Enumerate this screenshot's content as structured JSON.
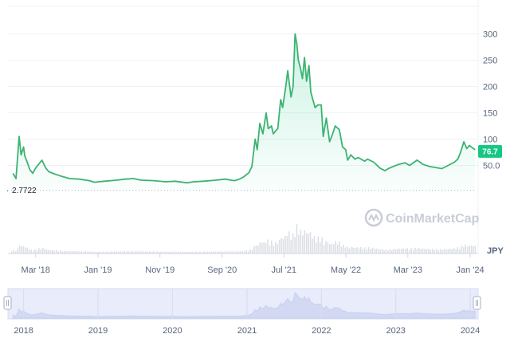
{
  "watermark": {
    "text": "CoinMarketCap"
  },
  "currency_label": "JPY",
  "base_price_label": "2.7722",
  "current_price_label": "76.7",
  "colors": {
    "line": "#3cb371",
    "fill_top": "#16c784",
    "badge": "#16c784",
    "volume": "#dcdfe4",
    "grid": "#eff2f5",
    "navigator_fill": "#e8ecfb",
    "navigator_line": "#c7d0ef"
  },
  "chart_data": {
    "type": "area",
    "title": "",
    "xlabel": "",
    "ylabel": "",
    "y_ticks": [
      "50.0",
      "100",
      "150",
      "200",
      "250",
      "300"
    ],
    "ylim": [
      0,
      330
    ],
    "x_ticks": [
      "Mar '18",
      "Jan '19",
      "Nov '19",
      "Sep '20",
      "Jul '21",
      "May '22",
      "Mar '23",
      "Jan '24"
    ],
    "navigator_ticks": [
      "2018",
      "2019",
      "2020",
      "2021",
      "2022",
      "2023",
      "2024"
    ],
    "grid": true,
    "legend": "none",
    "series": [
      {
        "x": [
          "2017-11-10",
          "2017-11-25",
          "2017-12-10",
          "2017-12-20",
          "2018-01-01",
          "2018-01-07",
          "2018-01-15",
          "2018-02-01",
          "2018-02-15",
          "2018-03-01",
          "2018-04-01",
          "2018-04-20",
          "2018-05-05",
          "2018-06-01",
          "2018-07-01",
          "2018-08-15",
          "2018-10-01",
          "2018-11-20",
          "2018-12-15",
          "2019-02-01",
          "2019-04-01",
          "2019-05-15",
          "2019-06-25",
          "2019-08-01",
          "2019-10-01",
          "2019-12-01",
          "2020-01-15",
          "2020-03-12",
          "2020-04-15",
          "2020-06-01",
          "2020-08-01",
          "2020-09-15",
          "2020-11-01",
          "2020-11-25",
          "2020-12-15",
          "2021-01-10",
          "2021-01-25",
          "2021-02-10",
          "2021-02-20",
          "2021-03-05",
          "2021-03-20",
          "2021-04-05",
          "2021-04-15",
          "2021-05-01",
          "2021-05-10",
          "2021-05-20",
          "2021-06-01",
          "2021-06-15",
          "2021-06-25",
          "2021-07-10",
          "2021-07-20",
          "2021-08-05",
          "2021-08-15",
          "2021-08-25",
          "2021-09-03",
          "2021-09-10",
          "2021-09-20",
          "2021-09-30",
          "2021-10-10",
          "2021-10-20",
          "2021-11-01",
          "2021-11-10",
          "2021-11-20",
          "2021-12-01",
          "2021-12-15",
          "2021-12-31",
          "2022-01-10",
          "2022-01-25",
          "2022-02-10",
          "2022-02-25",
          "2022-03-10",
          "2022-03-30",
          "2022-04-15",
          "2022-04-30",
          "2022-05-10",
          "2022-05-25",
          "2022-06-15",
          "2022-07-01",
          "2022-08-01",
          "2022-08-15",
          "2022-09-15",
          "2022-10-15",
          "2022-11-09",
          "2022-11-25",
          "2022-12-20",
          "2023-01-15",
          "2023-02-15",
          "2023-03-10",
          "2023-04-15",
          "2023-05-15",
          "2023-06-15",
          "2023-07-15",
          "2023-08-15",
          "2023-09-15",
          "2023-10-15",
          "2023-11-01",
          "2023-11-15",
          "2023-12-01",
          "2023-12-15",
          "2023-12-28",
          "2024-01-10",
          "2024-01-25"
        ],
        "y": [
          35,
          25,
          105,
          70,
          85,
          68,
          60,
          42,
          35,
          45,
          60,
          45,
          38,
          34,
          30,
          25,
          24,
          21,
          18,
          20,
          22,
          24,
          25,
          22,
          21,
          19,
          20,
          17,
          19,
          20,
          22,
          24,
          21,
          24,
          28,
          36,
          48,
          100,
          80,
          130,
          110,
          150,
          120,
          125,
          110,
          115,
          120,
          175,
          160,
          200,
          230,
          180,
          200,
          300,
          280,
          250,
          235,
          215,
          255,
          210,
          240,
          190,
          175,
          160,
          165,
          165,
          105,
          140,
          95,
          110,
          125,
          118,
          85,
          80,
          60,
          70,
          62,
          65,
          58,
          62,
          56,
          45,
          40,
          44,
          48,
          52,
          55,
          50,
          60,
          52,
          48,
          46,
          44,
          50,
          56,
          62,
          75,
          95,
          82,
          88,
          84,
          80
        ]
      }
    ]
  }
}
